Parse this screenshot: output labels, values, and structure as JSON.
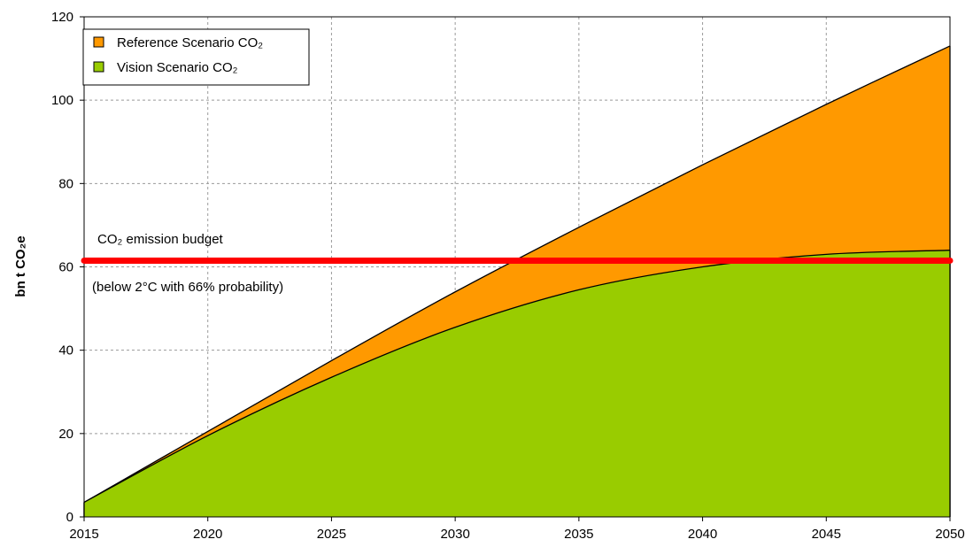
{
  "chart_data": {
    "type": "area",
    "ylabel": "bn t CO₂e",
    "xlim": [
      2015,
      2050
    ],
    "ylim": [
      0,
      120
    ],
    "xticks": [
      2015,
      2020,
      2025,
      2030,
      2035,
      2040,
      2045,
      2050
    ],
    "yticks": [
      0,
      20,
      40,
      60,
      80,
      100,
      120
    ],
    "grid": true,
    "legend_position": "top-left",
    "series": [
      {
        "name": "Reference Scenario CO₂",
        "color": "#ff9900",
        "x": [
          2015,
          2020,
          2025,
          2030,
          2035,
          2040,
          2045,
          2050
        ],
        "values": [
          3.5,
          20.5,
          37.5,
          54,
          69.5,
          84.5,
          99,
          113
        ]
      },
      {
        "name": "Vision Scenario CO₂",
        "color": "#99cc00",
        "x": [
          2015,
          2020,
          2025,
          2030,
          2035,
          2040,
          2045,
          2050
        ],
        "values": [
          3.5,
          19.5,
          33.5,
          45.5,
          54.5,
          60,
          63,
          64
        ]
      }
    ],
    "reference_line": {
      "value": 61.5,
      "color": "#ff0000",
      "label": "CO₂ emission budget",
      "sublabel": "(below 2°C with 66% probability)"
    }
  }
}
